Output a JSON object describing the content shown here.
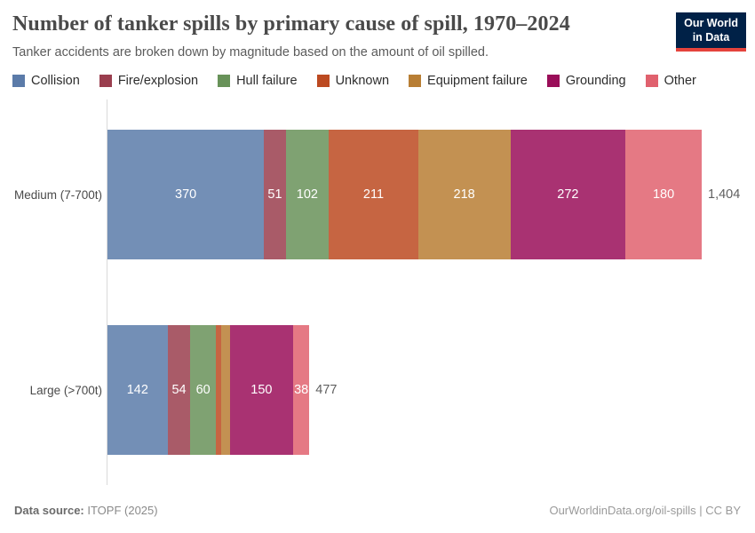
{
  "header": {
    "title": "Number of tanker spills by primary cause of spill, 1970–2024",
    "subtitle": "Tanker accidents are broken down by magnitude based on the amount of oil spilled.",
    "logo": {
      "line1": "Our World",
      "line2": "in Data",
      "bg_color": "#002147",
      "accent_color": "#e5433c"
    }
  },
  "legend": [
    {
      "label": "Collision",
      "color": "#5b7ba9"
    },
    {
      "label": "Fire/explosion",
      "color": "#9a3e4e"
    },
    {
      "label": "Hull failure",
      "color": "#689259"
    },
    {
      "label": "Unknown",
      "color": "#bc4a21"
    },
    {
      "label": "Equipment failure",
      "color": "#b87e34"
    },
    {
      "label": "Grounding",
      "color": "#9a0e59"
    },
    {
      "label": "Other",
      "color": "#e0616e"
    }
  ],
  "chart_data": {
    "type": "bar",
    "orientation": "horizontal",
    "stacked": true,
    "grid": false,
    "legend_position": "top",
    "categories": [
      "Medium (7-700t)",
      "Large (>700t)"
    ],
    "series": [
      {
        "name": "Collision",
        "color": "#5b7ba9",
        "values": [
          370,
          142
        ]
      },
      {
        "name": "Fire/explosion",
        "color": "#9a3e4e",
        "values": [
          51,
          54
        ]
      },
      {
        "name": "Hull failure",
        "color": "#689259",
        "values": [
          102,
          60
        ]
      },
      {
        "name": "Unknown",
        "color": "#bc4a21",
        "values": [
          211,
          12
        ]
      },
      {
        "name": "Equipment failure",
        "color": "#b87e34",
        "values": [
          218,
          21
        ]
      },
      {
        "name": "Grounding",
        "color": "#9a0e59",
        "values": [
          272,
          150
        ]
      },
      {
        "name": "Other",
        "color": "#e0616e",
        "values": [
          180,
          38
        ]
      }
    ],
    "totals": [
      1404,
      477
    ],
    "totals_formatted": [
      "1,404",
      "477"
    ],
    "xlim": [
      0,
      1404
    ],
    "bar_fill_opacity": 0.85
  },
  "footer": {
    "source_label": "Data source:",
    "source_value": " ITOPF (2025)",
    "credit": "OurWorldinData.org/oil-spills | CC BY"
  }
}
